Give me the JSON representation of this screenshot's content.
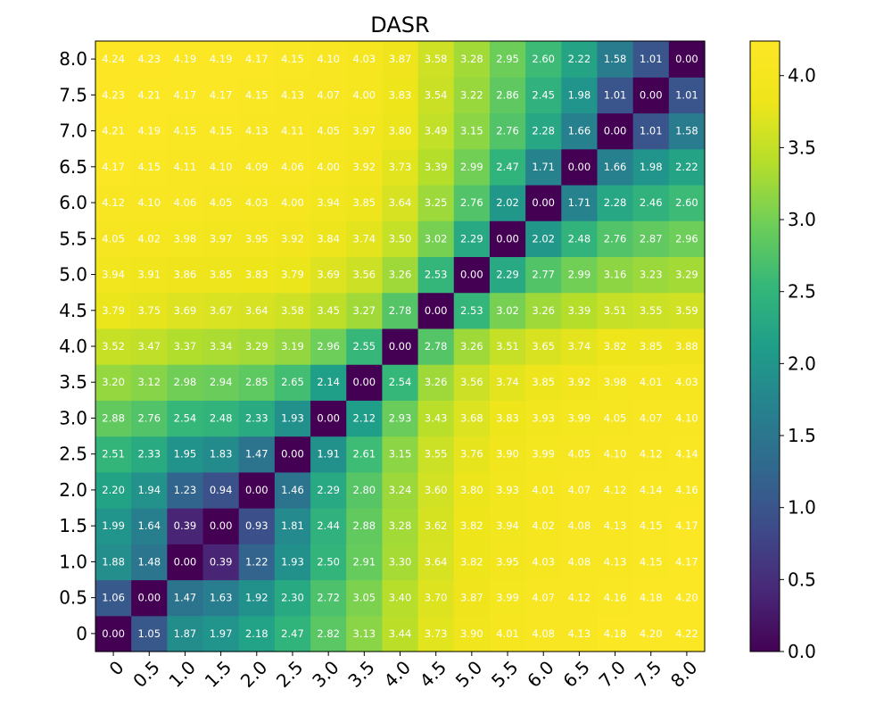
{
  "chart_data": {
    "type": "heatmap",
    "title": "DASR",
    "xlabel": "",
    "ylabel": "",
    "x_categories": [
      "0",
      "0.5",
      "1.0",
      "1.5",
      "2.0",
      "2.5",
      "3.0",
      "3.5",
      "4.0",
      "4.5",
      "5.0",
      "5.5",
      "6.0",
      "6.5",
      "7.0",
      "7.5",
      "8.0"
    ],
    "y_categories": [
      "0",
      "0.5",
      "1.0",
      "1.5",
      "2.0",
      "2.5",
      "3.0",
      "3.5",
      "4.0",
      "4.5",
      "5.0",
      "5.5",
      "6.0",
      "6.5",
      "7.0",
      "7.5",
      "8.0"
    ],
    "values": [
      [
        0.0,
        1.05,
        1.87,
        1.97,
        2.18,
        2.47,
        2.82,
        3.13,
        3.44,
        3.73,
        3.9,
        4.01,
        4.08,
        4.13,
        4.18,
        4.2,
        4.22
      ],
      [
        1.06,
        0.0,
        1.47,
        1.63,
        1.92,
        2.3,
        2.72,
        3.05,
        3.4,
        3.7,
        3.87,
        3.99,
        4.07,
        4.12,
        4.16,
        4.18,
        4.2
      ],
      [
        1.88,
        1.48,
        0.0,
        0.39,
        1.22,
        1.93,
        2.5,
        2.91,
        3.3,
        3.64,
        3.82,
        3.95,
        4.03,
        4.08,
        4.13,
        4.15,
        4.17
      ],
      [
        1.99,
        1.64,
        0.39,
        0.0,
        0.93,
        1.81,
        2.44,
        2.88,
        3.28,
        3.62,
        3.82,
        3.94,
        4.02,
        4.08,
        4.13,
        4.15,
        4.17
      ],
      [
        2.2,
        1.94,
        1.23,
        0.94,
        0.0,
        1.46,
        2.29,
        2.8,
        3.24,
        3.6,
        3.8,
        3.93,
        4.01,
        4.07,
        4.12,
        4.14,
        4.16
      ],
      [
        2.51,
        2.33,
        1.95,
        1.83,
        1.47,
        0.0,
        1.91,
        2.61,
        3.15,
        3.55,
        3.76,
        3.9,
        3.99,
        4.05,
        4.1,
        4.12,
        4.14
      ],
      [
        2.88,
        2.76,
        2.54,
        2.48,
        2.33,
        1.93,
        0.0,
        2.12,
        2.93,
        3.43,
        3.68,
        3.83,
        3.93,
        3.99,
        4.05,
        4.07,
        4.1
      ],
      [
        3.2,
        3.12,
        2.98,
        2.94,
        2.85,
        2.65,
        2.14,
        0.0,
        2.54,
        3.26,
        3.56,
        3.74,
        3.85,
        3.92,
        3.98,
        4.01,
        4.03
      ],
      [
        3.52,
        3.47,
        3.37,
        3.34,
        3.29,
        3.19,
        2.96,
        2.55,
        0.0,
        2.78,
        3.26,
        3.51,
        3.65,
        3.74,
        3.82,
        3.85,
        3.88
      ],
      [
        3.79,
        3.75,
        3.69,
        3.67,
        3.64,
        3.58,
        3.45,
        3.27,
        2.78,
        0.0,
        2.53,
        3.02,
        3.26,
        3.39,
        3.51,
        3.55,
        3.59
      ],
      [
        3.94,
        3.91,
        3.86,
        3.85,
        3.83,
        3.79,
        3.69,
        3.56,
        3.26,
        2.53,
        0.0,
        2.29,
        2.77,
        2.99,
        3.16,
        3.23,
        3.29
      ],
      [
        4.05,
        4.02,
        3.98,
        3.97,
        3.95,
        3.92,
        3.84,
        3.74,
        3.5,
        3.02,
        2.29,
        0.0,
        2.02,
        2.48,
        2.76,
        2.87,
        2.96
      ],
      [
        4.12,
        4.1,
        4.06,
        4.05,
        4.03,
        4.0,
        3.94,
        3.85,
        3.64,
        3.25,
        2.76,
        2.02,
        0.0,
        1.71,
        2.28,
        2.46,
        2.6
      ],
      [
        4.17,
        4.15,
        4.11,
        4.1,
        4.09,
        4.06,
        4.0,
        3.92,
        3.73,
        3.39,
        2.99,
        2.47,
        1.71,
        0.0,
        1.66,
        1.98,
        2.22
      ],
      [
        4.21,
        4.19,
        4.15,
        4.15,
        4.13,
        4.11,
        4.05,
        3.97,
        3.8,
        3.49,
        3.15,
        2.76,
        2.28,
        1.66,
        0.0,
        1.01,
        1.58
      ],
      [
        4.23,
        4.21,
        4.17,
        4.17,
        4.15,
        4.13,
        4.07,
        4.0,
        3.83,
        3.54,
        3.22,
        2.86,
        2.45,
        1.98,
        1.01,
        0.0,
        1.01
      ],
      [
        4.24,
        4.23,
        4.19,
        4.19,
        4.17,
        4.15,
        4.1,
        4.03,
        3.87,
        3.58,
        3.28,
        2.95,
        2.6,
        2.22,
        1.58,
        1.01,
        0.0
      ]
    ],
    "y_order": "bottom-to-top",
    "colormap": "viridis",
    "vmin": 0.0,
    "vmax": 4.24,
    "value_format": "2 decimals",
    "colorbar": {
      "ticks": [
        0.0,
        0.5,
        1.0,
        1.5,
        2.0,
        2.5,
        3.0,
        3.5,
        4.0
      ],
      "tick_labels": [
        "0.0",
        "0.5",
        "1.0",
        "1.5",
        "2.0",
        "2.5",
        "3.0",
        "3.5",
        "4.0"
      ],
      "placement": "right"
    },
    "grid": false
  }
}
